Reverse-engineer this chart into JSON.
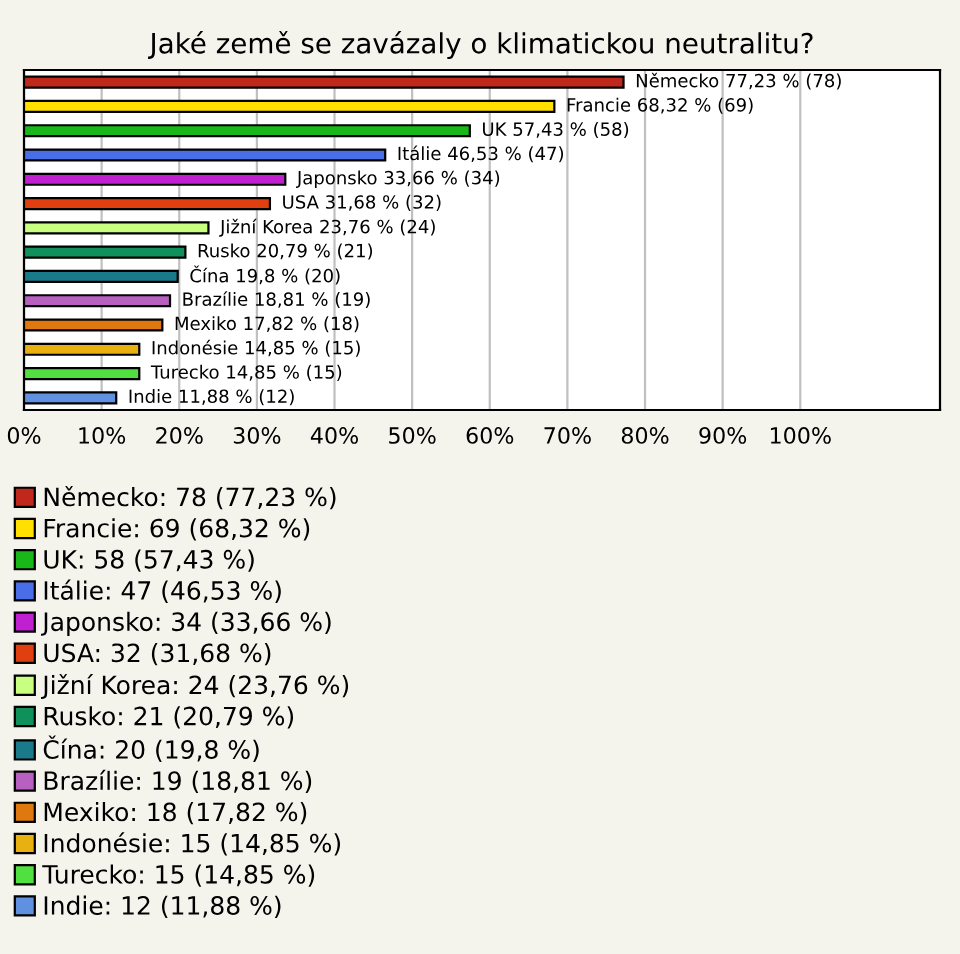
{
  "chart_data": {
    "type": "bar",
    "orientation": "horizontal",
    "title": "Jaké země se zavázaly o klimatickou neutralitu?",
    "categories": [
      null,
      null,
      null,
      null,
      null,
      null,
      null,
      null,
      null,
      null,
      null,
      null,
      null,
      null
    ],
    "series": [
      {
        "name": "Německo: 78 (77,23 %)",
        "color": "#c0281c",
        "values": [
          77.23,
          null,
          null,
          null,
          null,
          null,
          null,
          null,
          null,
          null,
          null,
          null,
          null,
          null
        ],
        "value_labels": [
          "Německo 77,23 % (78)",
          null,
          null,
          null,
          null,
          null,
          null,
          null,
          null,
          null,
          null,
          null,
          null,
          null
        ]
      },
      {
        "name": "Francie: 69 (68,32 %)",
        "color": "#ffe000",
        "values": [
          null,
          68.32,
          null,
          null,
          null,
          null,
          null,
          null,
          null,
          null,
          null,
          null,
          null,
          null
        ],
        "value_labels": [
          null,
          "Francie 68,32 % (69)",
          null,
          null,
          null,
          null,
          null,
          null,
          null,
          null,
          null,
          null,
          null,
          null
        ]
      },
      {
        "name": "UK: 58 (57,43 %)",
        "color": "#18b818",
        "values": [
          null,
          null,
          57.43,
          null,
          null,
          null,
          null,
          null,
          null,
          null,
          null,
          null,
          null,
          null
        ],
        "value_labels": [
          null,
          null,
          "UK 57,43 % (58)",
          null,
          null,
          null,
          null,
          null,
          null,
          null,
          null,
          null,
          null,
          null
        ]
      },
      {
        "name": "Itálie: 47 (46,53 %)",
        "color": "#4a6ee8",
        "values": [
          null,
          null,
          null,
          46.53,
          null,
          null,
          null,
          null,
          null,
          null,
          null,
          null,
          null,
          null
        ],
        "value_labels": [
          null,
          null,
          null,
          "Itálie 46,53 % (47)",
          null,
          null,
          null,
          null,
          null,
          null,
          null,
          null,
          null,
          null
        ]
      },
      {
        "name": "Japonsko: 34 (33,66 %)",
        "color": "#c020d0",
        "values": [
          null,
          null,
          null,
          null,
          33.66,
          null,
          null,
          null,
          null,
          null,
          null,
          null,
          null,
          null
        ],
        "value_labels": [
          null,
          null,
          null,
          null,
          "Japonsko 33,66 % (34)",
          null,
          null,
          null,
          null,
          null,
          null,
          null,
          null,
          null
        ]
      },
      {
        "name": "USA: 32 (31,68 %)",
        "color": "#e04010",
        "values": [
          null,
          null,
          null,
          null,
          null,
          31.68,
          null,
          null,
          null,
          null,
          null,
          null,
          null,
          null
        ],
        "value_labels": [
          null,
          null,
          null,
          null,
          null,
          "USA 31,68 % (32)",
          null,
          null,
          null,
          null,
          null,
          null,
          null,
          null
        ]
      },
      {
        "name": "Jižní Korea: 24 (23,76 %)",
        "color": "#c8ff80",
        "values": [
          null,
          null,
          null,
          null,
          null,
          null,
          23.76,
          null,
          null,
          null,
          null,
          null,
          null,
          null
        ],
        "value_labels": [
          null,
          null,
          null,
          null,
          null,
          null,
          "Jižní Korea 23,76 % (24)",
          null,
          null,
          null,
          null,
          null,
          null,
          null
        ]
      },
      {
        "name": "Rusko: 21 (20,79 %)",
        "color": "#10905a",
        "values": [
          null,
          null,
          null,
          null,
          null,
          null,
          null,
          20.79,
          null,
          null,
          null,
          null,
          null,
          null
        ],
        "value_labels": [
          null,
          null,
          null,
          null,
          null,
          null,
          null,
          "Rusko 20,79 % (21)",
          null,
          null,
          null,
          null,
          null,
          null
        ]
      },
      {
        "name": "Čína: 20 (19,8 %)",
        "color": "#1a7a8a",
        "values": [
          null,
          null,
          null,
          null,
          null,
          null,
          null,
          null,
          19.8,
          null,
          null,
          null,
          null,
          null
        ],
        "value_labels": [
          null,
          null,
          null,
          null,
          null,
          null,
          null,
          null,
          "Čína 19,8 % (20)",
          null,
          null,
          null,
          null,
          null
        ]
      },
      {
        "name": "Brazílie: 19 (18,81 %)",
        "color": "#b860c0",
        "values": [
          null,
          null,
          null,
          null,
          null,
          null,
          null,
          null,
          null,
          18.81,
          null,
          null,
          null,
          null
        ],
        "value_labels": [
          null,
          null,
          null,
          null,
          null,
          null,
          null,
          null,
          null,
          "Brazílie 18,81 % (19)",
          null,
          null,
          null,
          null
        ]
      },
      {
        "name": "Mexiko: 18 (17,82 %)",
        "color": "#e07810",
        "values": [
          null,
          null,
          null,
          null,
          null,
          null,
          null,
          null,
          null,
          null,
          17.82,
          null,
          null,
          null
        ],
        "value_labels": [
          null,
          null,
          null,
          null,
          null,
          null,
          null,
          null,
          null,
          null,
          "Mexiko 17,82 % (18)",
          null,
          null,
          null
        ]
      },
      {
        "name": "Indonésie: 15 (14,85 %)",
        "color": "#e8b010",
        "values": [
          null,
          null,
          null,
          null,
          null,
          null,
          null,
          null,
          null,
          null,
          null,
          14.85,
          null,
          null
        ],
        "value_labels": [
          null,
          null,
          null,
          null,
          null,
          null,
          null,
          null,
          null,
          null,
          null,
          "Indonésie 14,85 % (15)",
          null,
          null
        ]
      },
      {
        "name": "Turecko: 15 (14,85 %)",
        "color": "#50e040",
        "values": [
          null,
          null,
          null,
          null,
          null,
          null,
          null,
          null,
          null,
          null,
          null,
          null,
          14.85,
          null
        ],
        "value_labels": [
          null,
          null,
          null,
          null,
          null,
          null,
          null,
          null,
          null,
          null,
          null,
          null,
          "Turecko 14,85 % (15)",
          null
        ]
      },
      {
        "name": "Indie: 12 (11,88 %)",
        "color": "#6090e0",
        "values": [
          null,
          null,
          null,
          null,
          null,
          null,
          null,
          null,
          null,
          null,
          null,
          null,
          null,
          11.88
        ],
        "value_labels": [
          null,
          null,
          null,
          null,
          null,
          null,
          null,
          null,
          null,
          null,
          null,
          null,
          null,
          "Indie 11,88 % (12)"
        ]
      }
    ],
    "xlim": [
      0,
      118
    ],
    "xticks": [
      {
        "value": 0,
        "label": "0%"
      },
      {
        "value": 10,
        "label": "10%"
      },
      {
        "value": 20,
        "label": "20%"
      },
      {
        "value": 30,
        "label": "30%"
      },
      {
        "value": 40,
        "label": "40%"
      },
      {
        "value": 50,
        "label": "50%"
      },
      {
        "value": 60,
        "label": "60%"
      },
      {
        "value": 70,
        "label": "70%"
      },
      {
        "value": 80,
        "label": "80%"
      },
      {
        "value": 90,
        "label": "90%"
      },
      {
        "value": 100,
        "label": "100%"
      }
    ],
    "grid": "x",
    "legend": "bottom"
  }
}
